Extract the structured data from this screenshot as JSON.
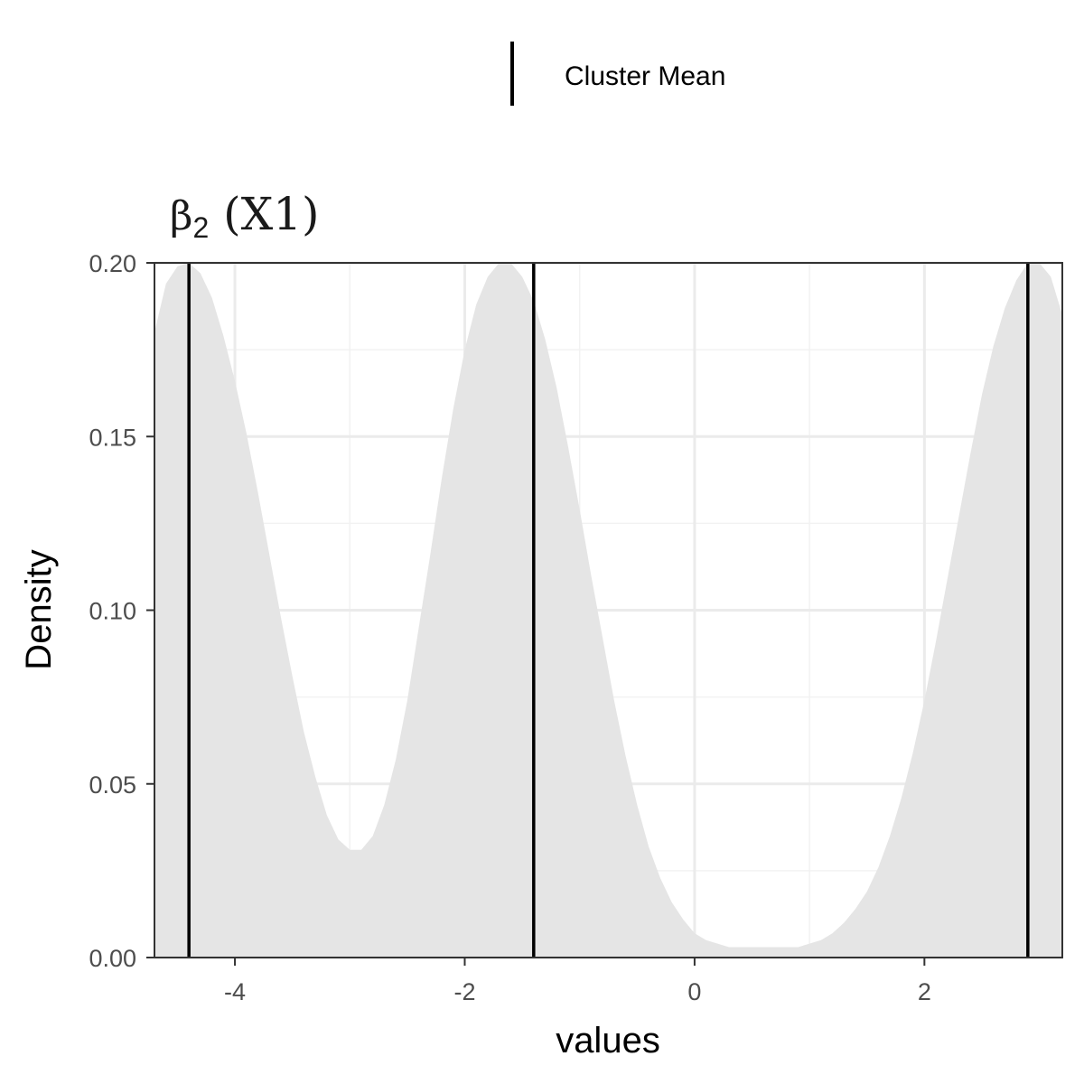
{
  "chart_data": {
    "type": "area",
    "title": "β",
    "title_subscript": "2",
    "title_suffix": " (X1)",
    "xlabel": "values",
    "ylabel": "Density",
    "xlim": [
      -4.7,
      3.2
    ],
    "ylim": [
      0,
      0.2
    ],
    "x_ticks": [
      -4,
      -2,
      0,
      2
    ],
    "x_tick_labels": [
      "-4",
      "-2",
      "0",
      "2"
    ],
    "y_ticks": [
      0,
      0.05,
      0.1,
      0.15,
      0.2
    ],
    "y_tick_labels": [
      "0.00",
      "0.05",
      "0.10",
      "0.15",
      "0.20"
    ],
    "grid": true,
    "legend": {
      "position": "top",
      "entries": [
        {
          "label": "Cluster Mean",
          "symbol": "vertical-line"
        }
      ]
    },
    "fill_color": "#e5e5e5",
    "line_color": "#000000",
    "density_curve": {
      "x": [
        -4.7,
        -4.6,
        -4.5,
        -4.4,
        -4.3,
        -4.2,
        -4.1,
        -4.0,
        -3.9,
        -3.8,
        -3.7,
        -3.6,
        -3.5,
        -3.4,
        -3.3,
        -3.2,
        -3.1,
        -3.0,
        -2.9,
        -2.8,
        -2.7,
        -2.6,
        -2.5,
        -2.4,
        -2.3,
        -2.2,
        -2.1,
        -2.0,
        -1.9,
        -1.8,
        -1.7,
        -1.6,
        -1.5,
        -1.4,
        -1.3,
        -1.2,
        -1.1,
        -1.0,
        -0.9,
        -0.8,
        -0.7,
        -0.6,
        -0.5,
        -0.4,
        -0.3,
        -0.2,
        -0.1,
        0.0,
        0.1,
        0.2,
        0.3,
        0.4,
        0.5,
        0.6,
        0.7,
        0.8,
        0.9,
        1.0,
        1.1,
        1.2,
        1.3,
        1.4,
        1.5,
        1.6,
        1.7,
        1.8,
        1.9,
        2.0,
        2.1,
        2.2,
        2.3,
        2.4,
        2.5,
        2.6,
        2.7,
        2.8,
        2.9,
        3.0,
        3.1,
        3.2
      ],
      "y": [
        0.18,
        0.194,
        0.199,
        0.2,
        0.197,
        0.19,
        0.179,
        0.166,
        0.151,
        0.134,
        0.116,
        0.098,
        0.081,
        0.065,
        0.052,
        0.041,
        0.034,
        0.031,
        0.031,
        0.035,
        0.044,
        0.057,
        0.074,
        0.095,
        0.116,
        0.138,
        0.158,
        0.175,
        0.188,
        0.196,
        0.2,
        0.2,
        0.196,
        0.189,
        0.178,
        0.164,
        0.147,
        0.129,
        0.11,
        0.092,
        0.074,
        0.058,
        0.044,
        0.032,
        0.023,
        0.016,
        0.011,
        0.007,
        0.005,
        0.004,
        0.003,
        0.003,
        0.003,
        0.003,
        0.003,
        0.003,
        0.003,
        0.004,
        0.005,
        0.007,
        0.01,
        0.014,
        0.019,
        0.026,
        0.035,
        0.046,
        0.059,
        0.074,
        0.091,
        0.109,
        0.127,
        0.145,
        0.162,
        0.176,
        0.187,
        0.195,
        0.2,
        0.2,
        0.196,
        0.185
      ]
    },
    "cluster_means": [
      -4.4,
      -1.4,
      2.9
    ]
  }
}
